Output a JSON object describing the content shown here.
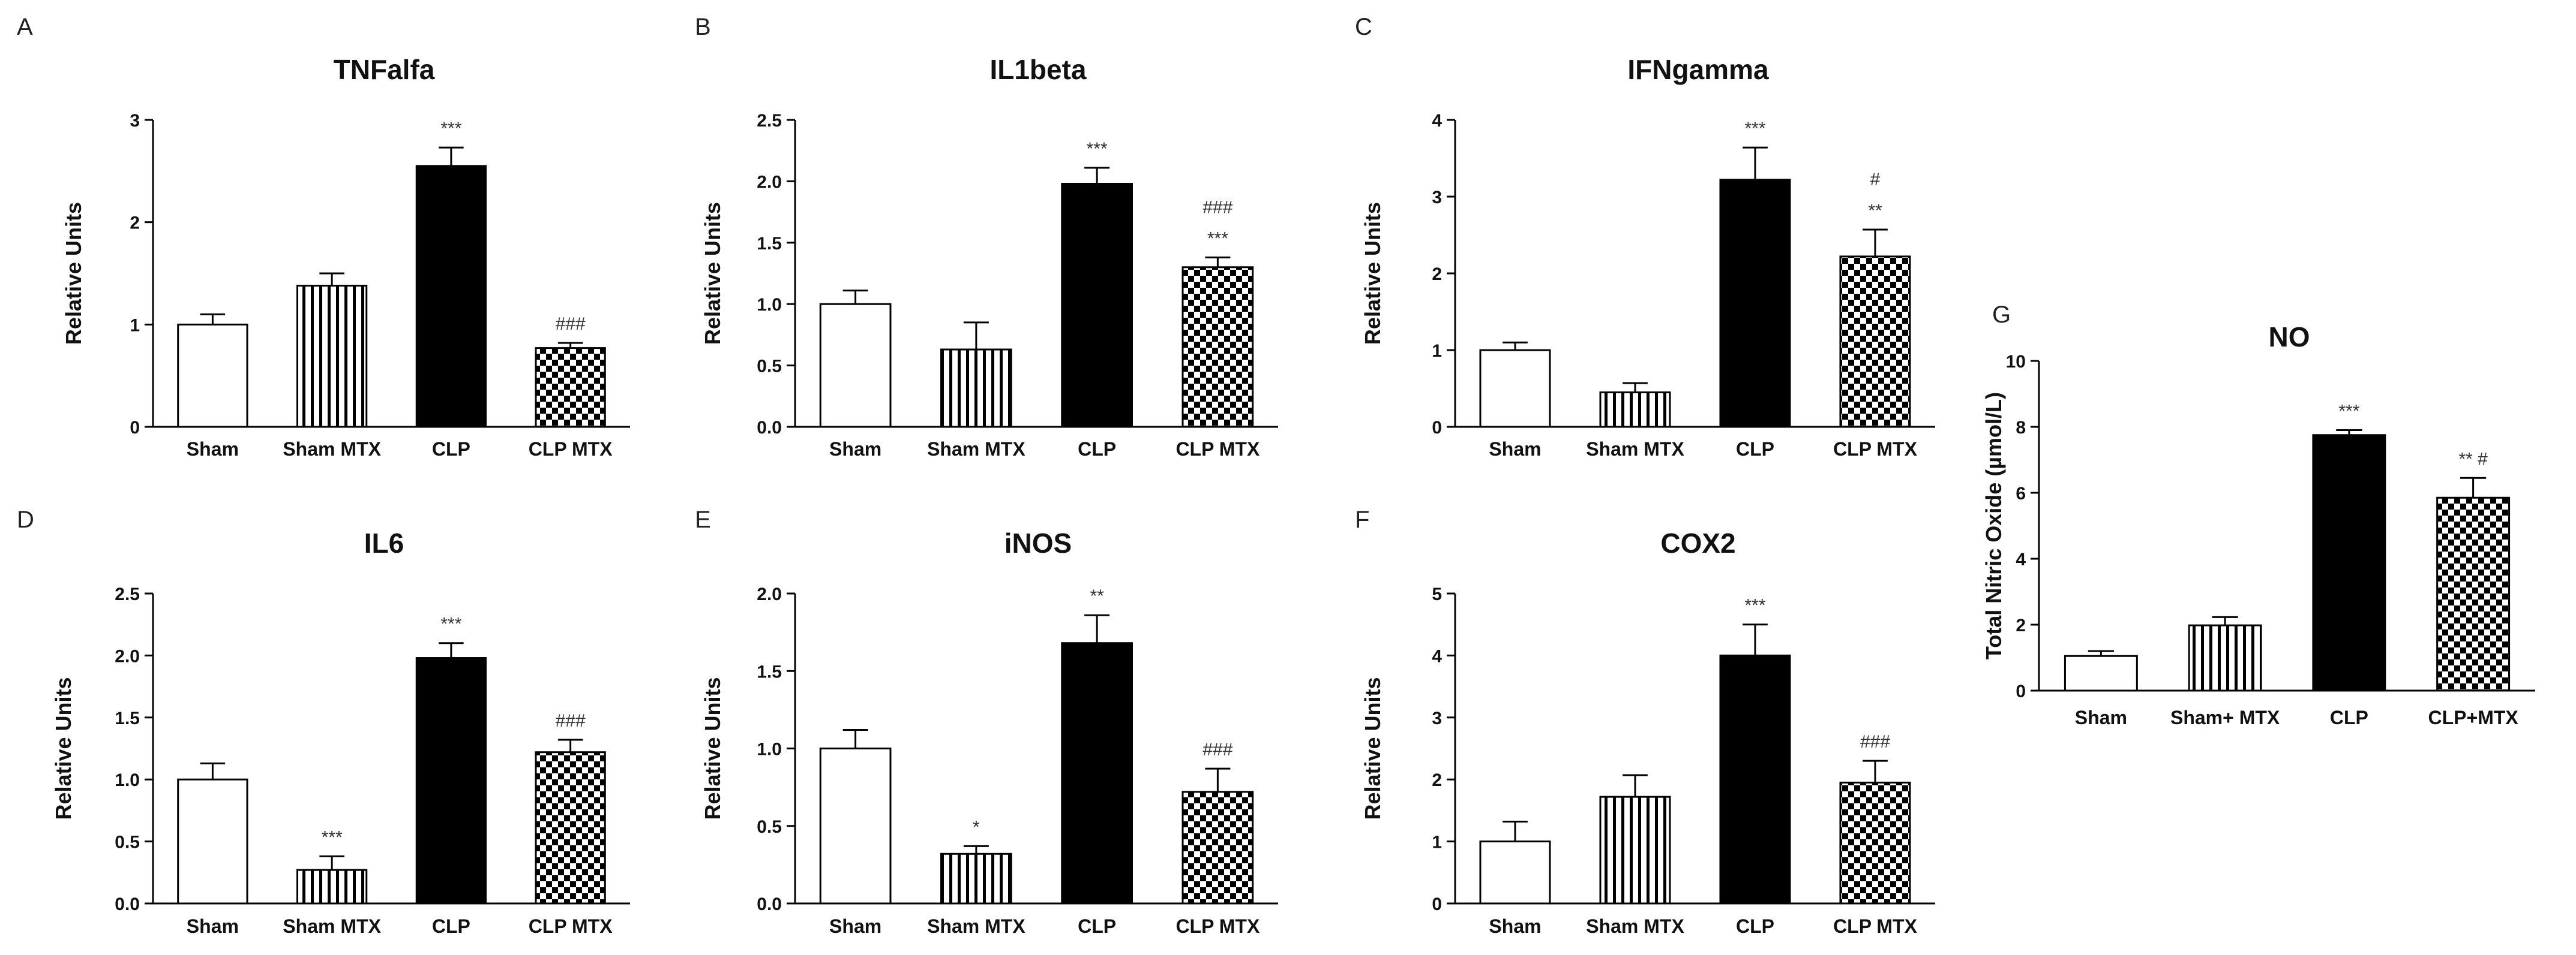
{
  "chart_data": [
    {
      "panel": "A",
      "type": "bar",
      "title": "TNFalfa",
      "ylabel": "Relative Units",
      "ylim": [
        0,
        3
      ],
      "yticks": [
        "0",
        "1",
        "2",
        "3"
      ],
      "categories": [
        "Sham",
        "Sham MTX",
        "CLP",
        "CLP MTX"
      ],
      "values": [
        1.0,
        1.38,
        2.55,
        0.77
      ],
      "errors": [
        0.1,
        0.12,
        0.18,
        0.05
      ],
      "patterns": [
        "white",
        "vstripe",
        "black",
        "checker"
      ],
      "annotations": [
        [],
        [],
        [
          "***"
        ],
        [
          "###"
        ]
      ]
    },
    {
      "panel": "B",
      "type": "bar",
      "title": "IL1beta",
      "ylabel": "Relative Units",
      "ylim": [
        0,
        2.5
      ],
      "yticks": [
        "0.0",
        "0.5",
        "1.0",
        "1.5",
        "2.0",
        "2.5"
      ],
      "categories": [
        "Sham",
        "Sham MTX",
        "CLP",
        "CLP MTX"
      ],
      "values": [
        1.0,
        0.63,
        1.98,
        1.3
      ],
      "errors": [
        0.11,
        0.22,
        0.13,
        0.08
      ],
      "patterns": [
        "white",
        "vstripe",
        "black",
        "checker"
      ],
      "annotations": [
        [],
        [],
        [
          "***"
        ],
        [
          "###",
          "***"
        ]
      ]
    },
    {
      "panel": "C",
      "type": "bar",
      "title": "IFNgamma",
      "ylabel": "Relative Units",
      "ylim": [
        0,
        4
      ],
      "yticks": [
        "0",
        "1",
        "2",
        "3",
        "4"
      ],
      "categories": [
        "Sham",
        "Sham MTX",
        "CLP",
        "CLP MTX"
      ],
      "values": [
        1.0,
        0.45,
        3.22,
        2.22
      ],
      "errors": [
        0.1,
        0.12,
        0.42,
        0.35
      ],
      "patterns": [
        "white",
        "vstripe",
        "black",
        "checker"
      ],
      "annotations": [
        [],
        [],
        [
          "***"
        ],
        [
          "#",
          "**"
        ]
      ]
    },
    {
      "panel": "D",
      "type": "bar",
      "title": "IL6",
      "ylabel": "Relative Units",
      "ylim": [
        0,
        2.5
      ],
      "yticks": [
        "0.0",
        "0.5",
        "1.0",
        "1.5",
        "2.0",
        "2.5"
      ],
      "categories": [
        "Sham",
        "Sham MTX",
        "CLP",
        "CLP MTX"
      ],
      "values": [
        1.0,
        0.27,
        1.98,
        1.22
      ],
      "errors": [
        0.13,
        0.11,
        0.12,
        0.1
      ],
      "patterns": [
        "white",
        "vstripe",
        "black",
        "checker"
      ],
      "annotations": [
        [],
        [
          "***"
        ],
        [
          "***"
        ],
        [
          "###"
        ]
      ]
    },
    {
      "panel": "E",
      "type": "bar",
      "title": "iNOS",
      "ylabel": "Relative Units",
      "ylim": [
        0,
        2.0
      ],
      "yticks": [
        "0.0",
        "0.5",
        "1.0",
        "1.5",
        "2.0"
      ],
      "categories": [
        "Sham",
        "Sham MTX",
        "CLP",
        "CLP MTX"
      ],
      "values": [
        1.0,
        0.32,
        1.68,
        0.72
      ],
      "errors": [
        0.12,
        0.05,
        0.18,
        0.15
      ],
      "patterns": [
        "white",
        "vstripe",
        "black",
        "checker"
      ],
      "annotations": [
        [],
        [
          "*"
        ],
        [
          "**"
        ],
        [
          "###"
        ]
      ]
    },
    {
      "panel": "F",
      "type": "bar",
      "title": "COX2",
      "ylabel": "Relative Units",
      "ylim": [
        0,
        5
      ],
      "yticks": [
        "0",
        "1",
        "2",
        "3",
        "4",
        "5"
      ],
      "categories": [
        "Sham",
        "Sham MTX",
        "CLP",
        "CLP MTX"
      ],
      "values": [
        1.0,
        1.72,
        4.0,
        1.95
      ],
      "errors": [
        0.32,
        0.35,
        0.5,
        0.35
      ],
      "patterns": [
        "white",
        "vstripe",
        "black",
        "checker"
      ],
      "annotations": [
        [],
        [],
        [
          "***"
        ],
        [
          "###"
        ]
      ]
    },
    {
      "panel": "G",
      "type": "bar",
      "title": "NO",
      "ylabel": "Total Nitric Oxide (µmol/L)",
      "ylim": [
        0,
        10
      ],
      "yticks": [
        "0",
        "2",
        "4",
        "6",
        "8",
        "10"
      ],
      "categories": [
        "Sham",
        "Sham+ MTX",
        "CLP",
        "CLP+MTX"
      ],
      "values": [
        1.05,
        1.98,
        7.75,
        5.85
      ],
      "errors": [
        0.15,
        0.25,
        0.15,
        0.6
      ],
      "patterns": [
        "white",
        "vstripe",
        "black",
        "checker"
      ],
      "annotations": [
        [],
        [],
        [
          "***"
        ],
        [
          "** #"
        ]
      ]
    }
  ]
}
